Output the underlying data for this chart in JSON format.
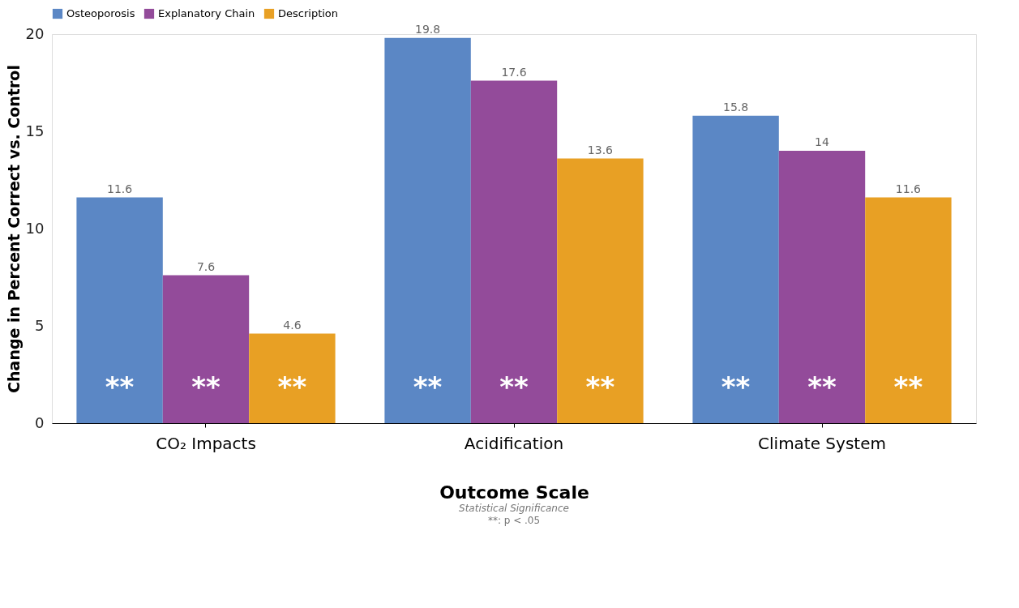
{
  "chart_data": {
    "type": "bar",
    "categories": [
      "CO₂ Impacts",
      "Acidification",
      "Climate System"
    ],
    "series": [
      {
        "name": "Osteoporosis",
        "color": "#5b87c5",
        "values": [
          11.6,
          19.8,
          15.8
        ]
      },
      {
        "name": "Explanatory Chain",
        "color": "#934b9a",
        "values": [
          7.6,
          17.6,
          14
        ]
      },
      {
        "name": "Description",
        "color": "#e8a024",
        "values": [
          4.6,
          13.6,
          11.6
        ]
      }
    ],
    "ylim": [
      0,
      20
    ],
    "yticks": [
      0,
      5,
      10,
      15,
      20
    ],
    "xlabel": "Outcome Scale",
    "ylabel": "Change in Percent Correct vs. Control",
    "data_labels": true,
    "legend": "top",
    "grid": false,
    "annotations": [
      "**",
      "**",
      "**",
      "**",
      "**",
      "**",
      "**",
      "**",
      "**",
      "Statistical Significance",
      "**: p < .05"
    ]
  }
}
